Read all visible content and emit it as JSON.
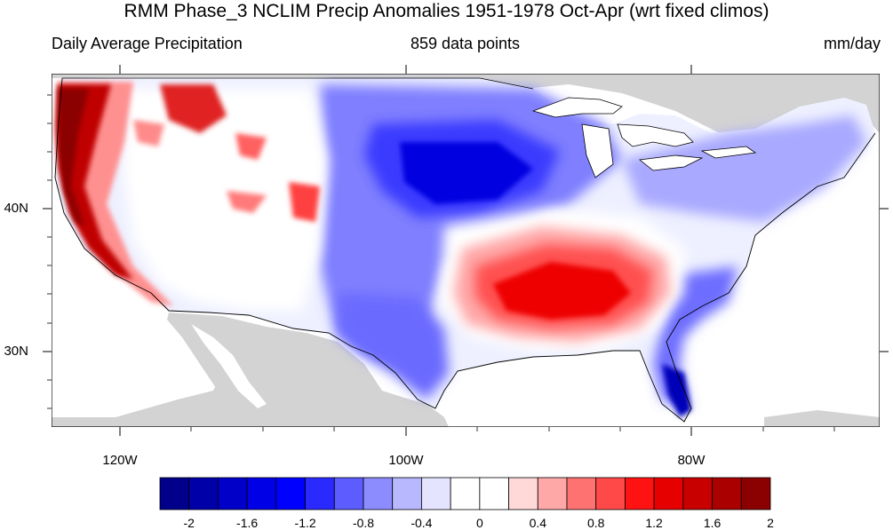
{
  "title": "RMM Phase_3 NCLIM Precip Anomalies 1951-1978 Oct-Apr (wrt fixed climos)",
  "subtitle_left": "Daily Average Precipitation",
  "subtitle_center": "859 data points",
  "subtitle_right": "mm/day",
  "map": {
    "lon_labels": [
      "120W",
      "100W",
      "80W"
    ],
    "lat_labels": [
      "40N",
      "30N"
    ],
    "land_missing_color": "#d3d3d3",
    "water_color": "#ffffff"
  },
  "colorbar": {
    "labels": [
      "-2",
      "-1.6",
      "-1.2",
      "-0.8",
      "-0.4",
      "0",
      "0.4",
      "0.8",
      "1.2",
      "1.6",
      "2"
    ],
    "colors": [
      "#00008b",
      "#0000a8",
      "#0000c8",
      "#0000e6",
      "#0000ff",
      "#2a2aff",
      "#5c5cff",
      "#8c8cff",
      "#b8b8ff",
      "#e4e4ff",
      "#ffffff",
      "#ffffff",
      "#ffd8d8",
      "#ffa8a8",
      "#ff7272",
      "#ff4848",
      "#ff1212",
      "#e60000",
      "#c80000",
      "#aa0000",
      "#8b0000"
    ]
  }
}
